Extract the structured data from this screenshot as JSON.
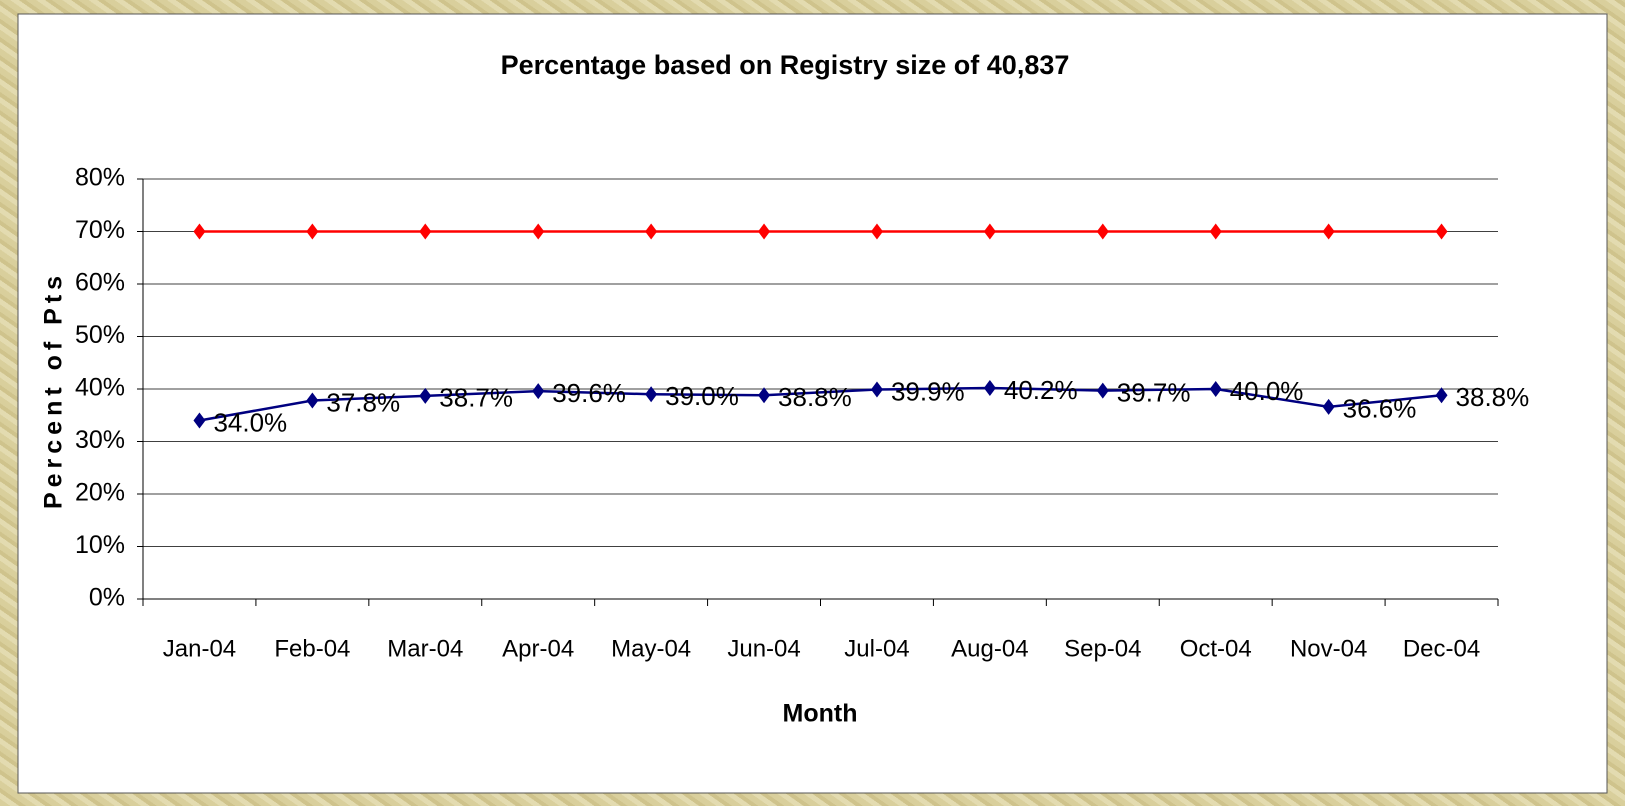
{
  "chart_data": {
    "type": "line",
    "title": "Percentage based on Registry size of 40,837",
    "x_label": "Month",
    "y_label": "Percent of Pts",
    "categories": [
      "Jan-04",
      "Feb-04",
      "Mar-04",
      "Apr-04",
      "May-04",
      "Jun-04",
      "Jul-04",
      "Aug-04",
      "Sep-04",
      "Oct-04",
      "Nov-04",
      "Dec-04"
    ],
    "series": [
      {
        "color": "#ff0000",
        "values": [
          70,
          70,
          70,
          70,
          70,
          70,
          70,
          70,
          70,
          70,
          70,
          70
        ]
      },
      {
        "color": "#000080",
        "values": [
          34.0,
          37.8,
          38.7,
          39.6,
          39.0,
          38.8,
          39.9,
          40.2,
          39.7,
          40.0,
          36.6,
          38.8
        ],
        "value_labels": [
          "34.0%",
          "37.8%",
          "38.7%",
          "39.6%",
          "39.0%",
          "38.8%",
          "39.9%",
          "40.2%",
          "39.7%",
          "40.0%",
          "36.6%",
          "38.8%"
        ]
      }
    ],
    "ylim": [
      0,
      80
    ],
    "yticks": [
      {
        "value": 0,
        "label": "0%"
      },
      {
        "value": 10,
        "label": "10%"
      },
      {
        "value": 20,
        "label": "20%"
      },
      {
        "value": 30,
        "label": "30%"
      },
      {
        "value": 40,
        "label": "40%"
      },
      {
        "value": 50,
        "label": "50%"
      },
      {
        "value": 60,
        "label": "60%"
      },
      {
        "value": 70,
        "label": "70%"
      },
      {
        "value": 80,
        "label": "80%"
      }
    ],
    "grid": true
  }
}
